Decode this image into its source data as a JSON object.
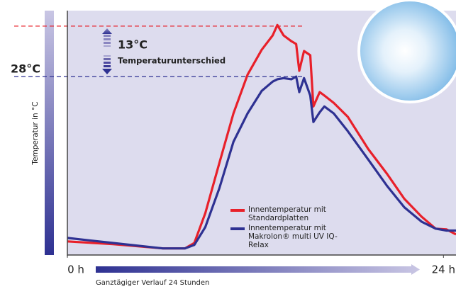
{
  "chart_data": {
    "type": "line",
    "y_axis_label": "Temperatur in °C",
    "x_axis_label": "Ganztägiger Verlauf 24 Stunden",
    "x": [
      0,
      2.9,
      6.1,
      7.5,
      8.1,
      8.8,
      9.7,
      10.6,
      11.5,
      12.4,
      13.1,
      13.4,
      13.8,
      14.3,
      14.6,
      14.8,
      15.1,
      15.5,
      15.7,
      16.1,
      16.4,
      17.0,
      17.9,
      19.2,
      20.4,
      21.5,
      22.6,
      23.5,
      24.2,
      24.8
    ],
    "series": [
      {
        "name": "Innentemperatur mit Standardplatten",
        "color": "#e8202a",
        "values": [
          -14.5,
          -15.2,
          -16.3,
          -16.3,
          -14.9,
          -7.2,
          5.7,
          18.5,
          28.5,
          34.9,
          38.6,
          41.3,
          38.6,
          37.1,
          36.4,
          29.5,
          34.6,
          33.5,
          20.3,
          24.0,
          23.1,
          21.2,
          17.6,
          9.3,
          2.9,
          -3.5,
          -8.1,
          -11.2,
          -11.4,
          -12.7
        ]
      },
      {
        "name": "Innentemperatur mit Makrolon® multi UV IQ-Relax",
        "color": "#2e3192",
        "values": [
          -13.6,
          -14.9,
          -16.3,
          -16.3,
          -15.4,
          -10.8,
          -0.8,
          11.2,
          18.5,
          24.3,
          26.7,
          27.3,
          27.6,
          27.3,
          28.0,
          24.0,
          27.6,
          23.1,
          16.3,
          18.8,
          20.3,
          18.5,
          13.9,
          6.6,
          -0.2,
          -5.7,
          -9.4,
          -11.2,
          -11.7,
          -11.7
        ]
      }
    ],
    "xlim": [
      0,
      24.8
    ],
    "xticks": [
      {
        "value": 0,
        "label": "0 h"
      },
      {
        "value": 24,
        "label": "24 h"
      }
    ],
    "ylim": [
      -18,
      45
    ],
    "reference_lines": [
      {
        "value": 41,
        "color": "#e8202a"
      },
      {
        "value": 28,
        "color": "#2e3192",
        "label": "28°C"
      }
    ],
    "annotation": {
      "value_text": "13°C",
      "text": "Temperaturunterschied"
    }
  }
}
